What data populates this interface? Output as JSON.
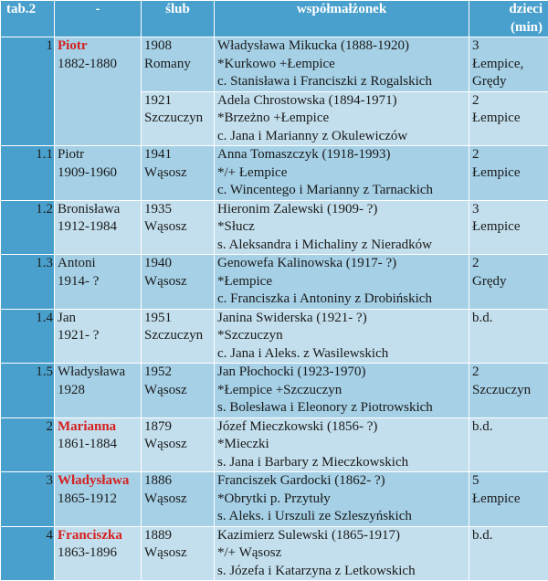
{
  "header": {
    "col0": "tab.2",
    "col1": "-",
    "col2": "ślub",
    "col3": "współmałżonek",
    "col4_line1": "dzieci",
    "col4_line2": "(min)"
  },
  "rows": [
    {
      "num": "1",
      "person_name": "Piotr",
      "person_name_highlighted": true,
      "person_dates": "1882-1880",
      "marriages": [
        {
          "year": "1908",
          "place": "Romany",
          "spouse": "Władysława Mikucka (1888-1920)",
          "birth_death": "*Kurkowo +Łempice",
          "parents": "c. Stanisława i Franciszki z Rogalskich",
          "children_count": "3",
          "children_place": "Łempice, Grędy"
        },
        {
          "year": "1921",
          "place": "Szczuczyn",
          "spouse": "Adela Chrostowska (1894-1971)",
          "birth_death": "*Brzeżno +Łempice",
          "parents": "c. Jana i Marianny z Okulewiczów",
          "children_count": "2",
          "children_place": "Łempice"
        }
      ]
    },
    {
      "num": "1.1",
      "person_name": "Piotr",
      "person_dates": "1909-1960",
      "year": "1941",
      "place": "Wąsosz",
      "spouse": "Anna Tomaszczyk (1918-1993)",
      "birth_death": "*/+ Łempice",
      "parents": "c. Wincentego i Marianny z Tarnackich",
      "children_count": "2",
      "children_place": "Łempice"
    },
    {
      "num": "1.2",
      "person_name": "Bronisława",
      "person_dates": "1912-1984",
      "year": "1935",
      "place": "Wąsosz",
      "spouse": "Hieronim Zalewski (1909- ?)",
      "birth_death": "*Słucz",
      "parents": "s. Aleksandra i Michaliny z Nieradków",
      "children_count": "3",
      "children_place": "Łempice"
    },
    {
      "num": "1.3",
      "person_name": "Antoni",
      "person_dates": "1914- ?",
      "year": "1940",
      "place": "Wąsosz",
      "spouse": "Genowefa Kalinowska (1917- ?)",
      "birth_death": "*Łempice",
      "parents": "c. Franciszka i Antoniny z Drobińskich",
      "children_count": "2",
      "children_place": "Grędy"
    },
    {
      "num": "1.4",
      "person_name": "Jan",
      "person_dates": "1921- ?",
      "year": "1951",
      "place": "Szczuczyn",
      "spouse": "Janina Swiderska (1921- ?)",
      "birth_death": "*Szczuczyn",
      "parents": "c. Jana i Aleks. z Wasilewskich",
      "children_count": "b.d.",
      "children_place": ""
    },
    {
      "num": "1.5",
      "person_name": "Władysława",
      "person_dates": "1928",
      "year": "1952",
      "place": "Wąsosz",
      "spouse": "Jan Płochocki (1923-1970)",
      "birth_death": "*Łempice +Szczuczyn",
      "parents": "s. Bolesława i Eleonory z Piotrowskich",
      "children_count": "2",
      "children_place": "Szczuczyn"
    },
    {
      "num": "2",
      "person_name": "Marianna",
      "person_name_highlighted": true,
      "person_dates": "1861-1884",
      "year": "1879",
      "place": "Wąsosz",
      "spouse": "Józef Mieczkowski (1856- ?)",
      "birth_death": "*Mieczki",
      "parents": "s. Jana i Barbary z Mieczkowskich",
      "children_count": "b.d.",
      "children_place": ""
    },
    {
      "num": "3",
      "person_name": "Władysława",
      "person_name_highlighted": true,
      "person_dates": "1865-1912",
      "year": "1886",
      "place": "Wąsosz",
      "spouse": "Franciszek Gardocki (1862- ?)",
      "birth_death": "*Obrytki p. Przytuły",
      "parents": "s. Aleks. i Urszuli ze Szleszyńskich",
      "children_count": "5",
      "children_place": "Łempice"
    },
    {
      "num": "4",
      "person_name": "Franciszka",
      "person_name_highlighted": true,
      "person_dates": "1863-1896",
      "year": "1889",
      "place": "Wąsosz",
      "spouse": "Kazimierz Sulewski (1865-1917)",
      "birth_death": "*/+ Wąsosz",
      "parents": "s. Józefa i Katarzyna z Letkowskich",
      "children_count": "b.d.",
      "children_place": ""
    }
  ],
  "colors": {
    "header_bg": "#4aa0cc",
    "row_light": "#c3dfed",
    "row_dark": "#a5d0e6",
    "highlight_text": "#d42020"
  }
}
